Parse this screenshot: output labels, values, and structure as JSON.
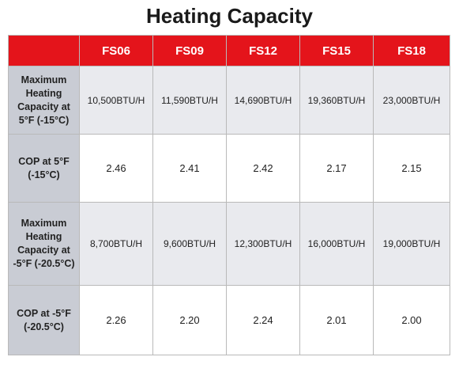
{
  "title": "Heating Capacity",
  "columns": [
    "FS06",
    "FS09",
    "FS12",
    "FS15",
    "FS18"
  ],
  "rows": [
    {
      "label": "Maximum Heating Capacity at 5°F (-15°C)",
      "values": [
        "10,500BTU/H",
        "11,590BTU/H",
        "14,690BTU/H",
        "19,360BTU/H",
        "23,000BTU/H"
      ]
    },
    {
      "label": "COP at 5°F (-15°C)",
      "values": [
        "2.46",
        "2.41",
        "2.42",
        "2.17",
        "2.15"
      ]
    },
    {
      "label": "Maximum Heating Capacity at -5°F (-20.5°C)",
      "values": [
        "8,700BTU/H",
        "9,600BTU/H",
        "12,300BTU/H",
        "16,000BTU/H",
        "19,000BTU/H"
      ]
    },
    {
      "label": "COP at -5°F (-20.5°C)",
      "values": [
        "2.26",
        "2.20",
        "2.24",
        "2.01",
        "2.00"
      ]
    }
  ],
  "colors": {
    "header_red": "#e4141b",
    "label_gray": "#c9ccd4",
    "shaded_row": "#e9eaee",
    "border": "#b9b9b9"
  }
}
